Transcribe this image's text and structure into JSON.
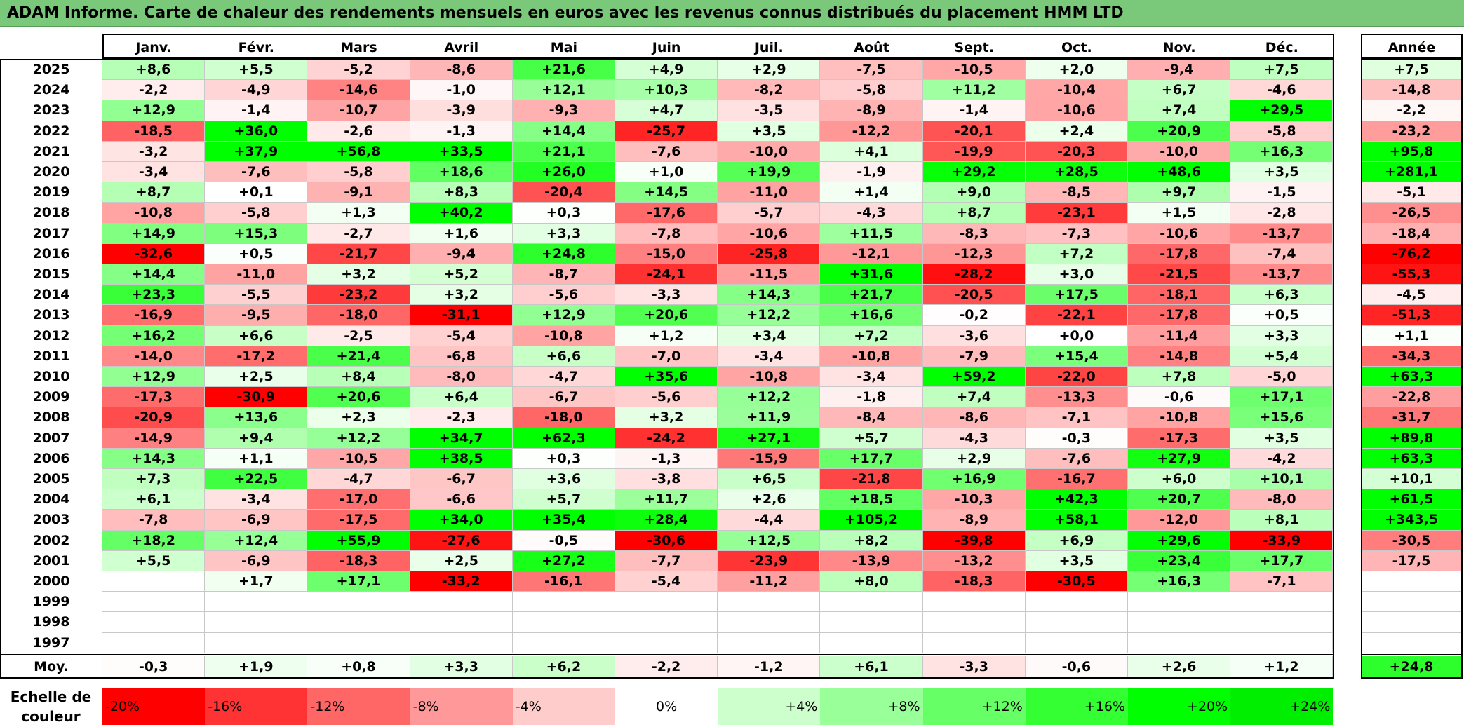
{
  "title": "ADAM Informe. Carte de chaleur des rendements mensuels en euros avec les revenus connus distribués du placement HMM LTD",
  "chart_data": {
    "type": "heatmap",
    "columns": [
      "Janv.",
      "Févr.",
      "Mars",
      "Avril",
      "Mai",
      "Juin",
      "Juil.",
      "Août",
      "Sept.",
      "Oct.",
      "Nov.",
      "Déc."
    ],
    "annual_label": "Année",
    "average_label": "Moy.",
    "rows": [
      {
        "year": "2025",
        "values": [
          "+8,6",
          "+5,5",
          "-5,2",
          "-8,6",
          "+21,6",
          "+4,9",
          "+2,9",
          "-7,5",
          "-10,5",
          "+2,0",
          "-9,4",
          "+7,5"
        ],
        "annual": "+7,5"
      },
      {
        "year": "2024",
        "values": [
          "-2,2",
          "-4,9",
          "-14,6",
          "-1,0",
          "+12,1",
          "+10,3",
          "-8,2",
          "-5,8",
          "+11,2",
          "-10,4",
          "+6,7",
          "-4,6"
        ],
        "annual": "-14,8"
      },
      {
        "year": "2023",
        "values": [
          "+12,9",
          "-1,4",
          "-10,7",
          "-3,9",
          "-9,3",
          "+4,7",
          "-3,5",
          "-8,9",
          "-1,4",
          "-10,6",
          "+7,4",
          "+29,5"
        ],
        "annual": "-2,2"
      },
      {
        "year": "2022",
        "values": [
          "-18,5",
          "+36,0",
          "-2,6",
          "-1,3",
          "+14,4",
          "-25,7",
          "+3,5",
          "-12,2",
          "-20,1",
          "+2,4",
          "+20,9",
          "-5,8"
        ],
        "annual": "-23,2"
      },
      {
        "year": "2021",
        "values": [
          "-3,2",
          "+37,9",
          "+56,8",
          "+33,5",
          "+21,1",
          "-7,6",
          "-10,0",
          "+4,1",
          "-19,9",
          "-20,3",
          "-10,0",
          "+16,3"
        ],
        "annual": "+95,8"
      },
      {
        "year": "2020",
        "values": [
          "-3,4",
          "-7,6",
          "-5,8",
          "+18,6",
          "+26,0",
          "+1,0",
          "+19,9",
          "-1,9",
          "+29,2",
          "+28,5",
          "+48,6",
          "+3,5"
        ],
        "annual": "+281,1"
      },
      {
        "year": "2019",
        "values": [
          "+8,7",
          "+0,1",
          "-9,1",
          "+8,3",
          "-20,4",
          "+14,5",
          "-11,0",
          "+1,4",
          "+9,0",
          "-8,5",
          "+9,7",
          "-1,5"
        ],
        "annual": "-5,1"
      },
      {
        "year": "2018",
        "values": [
          "-10,8",
          "-5,8",
          "+1,3",
          "+40,2",
          "+0,3",
          "-17,6",
          "-5,7",
          "-4,3",
          "+8,7",
          "-23,1",
          "+1,5",
          "-2,8"
        ],
        "annual": "-26,5"
      },
      {
        "year": "2017",
        "values": [
          "+14,9",
          "+15,3",
          "-2,7",
          "+1,6",
          "+3,3",
          "-7,8",
          "-10,6",
          "+11,5",
          "-8,3",
          "-7,3",
          "-10,6",
          "-13,7"
        ],
        "annual": "-18,4"
      },
      {
        "year": "2016",
        "values": [
          "-32,6",
          "+0,5",
          "-21,7",
          "-9,4",
          "+24,8",
          "-15,0",
          "-25,8",
          "-12,1",
          "-12,3",
          "+7,2",
          "-17,8",
          "-7,4"
        ],
        "annual": "-76,2"
      },
      {
        "year": "2015",
        "values": [
          "+14,4",
          "-11,0",
          "+3,2",
          "+5,2",
          "-8,7",
          "-24,1",
          "-11,5",
          "+31,6",
          "-28,2",
          "+3,0",
          "-21,5",
          "-13,7"
        ],
        "annual": "-55,3"
      },
      {
        "year": "2014",
        "values": [
          "+23,3",
          "-5,5",
          "-23,2",
          "+3,2",
          "-5,6",
          "-3,3",
          "+14,3",
          "+21,7",
          "-20,5",
          "+17,5",
          "-18,1",
          "+6,3"
        ],
        "annual": "-4,5"
      },
      {
        "year": "2013",
        "values": [
          "-16,9",
          "-9,5",
          "-18,0",
          "-31,1",
          "+12,9",
          "+20,6",
          "+12,2",
          "+16,6",
          "-0,2",
          "-22,1",
          "-17,8",
          "+0,5"
        ],
        "annual": "-51,3"
      },
      {
        "year": "2012",
        "values": [
          "+16,2",
          "+6,6",
          "-2,5",
          "-5,4",
          "-10,8",
          "+1,2",
          "+3,4",
          "+7,2",
          "-3,6",
          "+0,0",
          "-11,4",
          "+3,3"
        ],
        "annual": "+1,1"
      },
      {
        "year": "2011",
        "values": [
          "-14,0",
          "-17,2",
          "+21,4",
          "-6,8",
          "+6,6",
          "-7,0",
          "-3,4",
          "-10,8",
          "-7,9",
          "+15,4",
          "-14,8",
          "+5,4"
        ],
        "annual": "-34,3"
      },
      {
        "year": "2010",
        "values": [
          "+12,9",
          "+2,5",
          "+8,4",
          "-8,0",
          "-4,7",
          "+35,6",
          "-10,8",
          "-3,4",
          "+59,2",
          "-22,0",
          "+7,8",
          "-5,0"
        ],
        "annual": "+63,3"
      },
      {
        "year": "2009",
        "values": [
          "-17,3",
          "-30,9",
          "+20,6",
          "+6,4",
          "-6,7",
          "-5,6",
          "+12,2",
          "-1,8",
          "+7,4",
          "-13,3",
          "-0,6",
          "+17,1"
        ],
        "annual": "-22,8"
      },
      {
        "year": "2008",
        "values": [
          "-20,9",
          "+13,6",
          "+2,3",
          "-2,3",
          "-18,0",
          "+3,2",
          "+11,9",
          "-8,4",
          "-8,6",
          "-7,1",
          "-10,8",
          "+15,6"
        ],
        "annual": "-31,7"
      },
      {
        "year": "2007",
        "values": [
          "-14,9",
          "+9,4",
          "+12,2",
          "+34,7",
          "+62,3",
          "-24,2",
          "+27,1",
          "+5,7",
          "-4,3",
          "-0,3",
          "-17,3",
          "+3,5"
        ],
        "annual": "+89,8"
      },
      {
        "year": "2006",
        "values": [
          "+14,3",
          "+1,1",
          "-10,5",
          "+38,5",
          "+0,3",
          "-1,3",
          "-15,9",
          "+17,7",
          "+2,9",
          "-7,6",
          "+27,9",
          "-4,2"
        ],
        "annual": "+63,3"
      },
      {
        "year": "2005",
        "values": [
          "+7,3",
          "+22,5",
          "-4,7",
          "-6,7",
          "+3,6",
          "-3,8",
          "+6,5",
          "-21,8",
          "+16,9",
          "-16,7",
          "+6,0",
          "+10,1"
        ],
        "annual": "+10,1"
      },
      {
        "year": "2004",
        "values": [
          "+6,1",
          "-3,4",
          "-17,0",
          "-6,6",
          "+5,7",
          "+11,7",
          "+2,6",
          "+18,5",
          "-10,3",
          "+42,3",
          "+20,7",
          "-8,0"
        ],
        "annual": "+61,5"
      },
      {
        "year": "2003",
        "values": [
          "-7,8",
          "-6,9",
          "-17,5",
          "+34,0",
          "+35,4",
          "+28,4",
          "-4,4",
          "+105,2",
          "-8,9",
          "+58,1",
          "-12,0",
          "+8,1"
        ],
        "annual": "+343,5"
      },
      {
        "year": "2002",
        "values": [
          "+18,2",
          "+12,4",
          "+55,9",
          "-27,6",
          "-0,5",
          "-30,6",
          "+12,5",
          "+8,2",
          "-39,8",
          "+6,9",
          "+29,6",
          "-33,9"
        ],
        "annual": "-30,5"
      },
      {
        "year": "2001",
        "values": [
          "+5,5",
          "-6,9",
          "-18,3",
          "+2,5",
          "+27,2",
          "-7,7",
          "-23,9",
          "-13,9",
          "-13,2",
          "+3,5",
          "+23,4",
          "+17,7"
        ],
        "annual": "-17,5"
      },
      {
        "year": "2000",
        "values": [
          "",
          "+1,7",
          "+17,1",
          "-33,2",
          "-16,1",
          "-5,4",
          "-11,2",
          "+8,0",
          "-18,3",
          "-30,5",
          "+16,3",
          "-7,1"
        ],
        "annual": ""
      },
      {
        "year": "1999",
        "values": [
          "",
          "",
          "",
          "",
          "",
          "",
          "",
          "",
          "",
          "",
          "",
          ""
        ],
        "annual": ""
      },
      {
        "year": "1998",
        "values": [
          "",
          "",
          "",
          "",
          "",
          "",
          "",
          "",
          "",
          "",
          "",
          ""
        ],
        "annual": ""
      },
      {
        "year": "1997",
        "values": [
          "",
          "",
          "",
          "",
          "",
          "",
          "",
          "",
          "",
          "",
          "",
          ""
        ],
        "annual": ""
      }
    ],
    "averages": [
      "-0,3",
      "+1,9",
      "+0,8",
      "+3,3",
      "+6,2",
      "-2,2",
      "-1,2",
      "+6,1",
      "-3,3",
      "-0,6",
      "+2,6",
      "+1,2"
    ],
    "average_annual": "+24,8",
    "legend": {
      "title": "Echelle de couleur",
      "labels": [
        "-20%",
        "-16%",
        "-12%",
        "-8%",
        "-4%",
        "0%",
        "+4%",
        "+8%",
        "+12%",
        "+16%",
        "+20%",
        "+24%"
      ],
      "colors": [
        "#ff0000",
        "#ff3333",
        "#ff6666",
        "#ff9999",
        "#ffcccc",
        "#ffffff",
        "#ccffcc",
        "#99ff99",
        "#66ff66",
        "#33ff33",
        "#00ff00",
        "#00ee00"
      ]
    }
  }
}
